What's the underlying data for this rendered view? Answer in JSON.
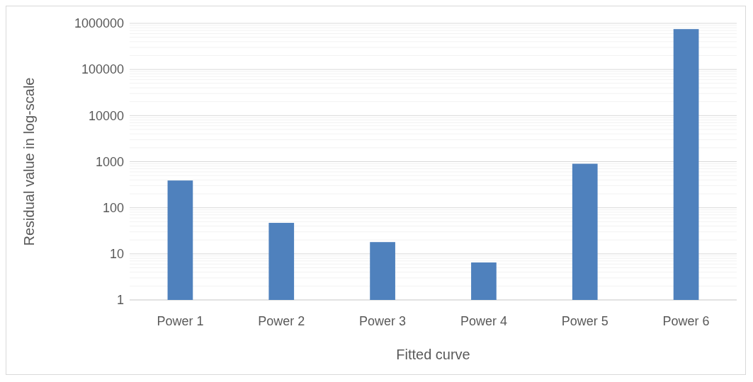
{
  "chart_data": {
    "type": "bar",
    "xlabel": "Fitted curve",
    "ylabel": "Residual value in log-scale",
    "categories": [
      "Power 1",
      "Power 2",
      "Power 3",
      "Power 4",
      "Power 5",
      "Power 6"
    ],
    "values": [
      390,
      47,
      18,
      6.5,
      900,
      750000
    ],
    "color": "#4f81bd",
    "log": true,
    "grid": true,
    "ylim": [
      1,
      1000000
    ],
    "yticks": [
      1,
      10,
      100,
      1000,
      10000,
      100000,
      1000000
    ]
  }
}
